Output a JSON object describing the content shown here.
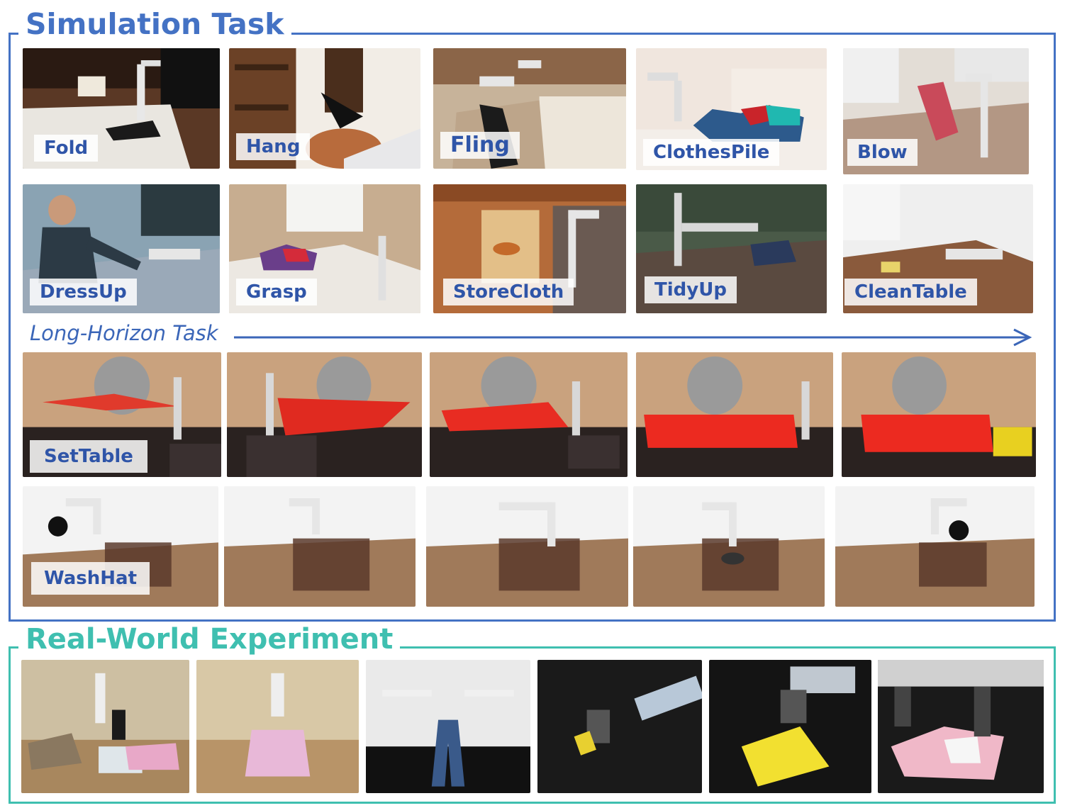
{
  "sections": {
    "simulation": {
      "title": "Simulation Task",
      "color": "#4472c4"
    },
    "long_horizon": {
      "title": "Long-Horizon Task",
      "color": "#3b66b8"
    },
    "real_world": {
      "title": "Real-World Experiment",
      "color": "#3fbfb0"
    }
  },
  "task_labels": {
    "fold": "Fold",
    "hang": "Hang",
    "fling": "Fling",
    "clothespile": "ClothesPile",
    "blow": "Blow",
    "dressup": "DressUp",
    "grasp": "Grasp",
    "storecloth": "StoreCloth",
    "tidyup": "TidyUp",
    "cleantable": "CleanTable",
    "settable": "SetTable",
    "washhat": "WashHat"
  }
}
